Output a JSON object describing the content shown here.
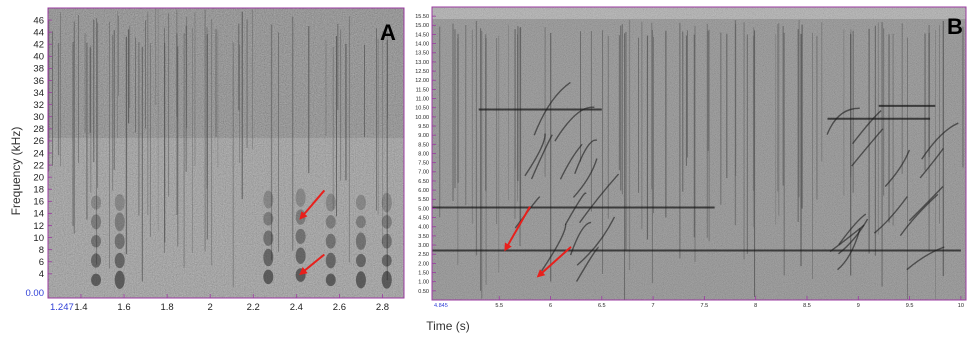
{
  "figure": {
    "y_axis_label": "Frequency (kHz)",
    "x_axis_label": "Time (s)"
  },
  "chart_data": [
    {
      "type": "heatmap",
      "panel_label": "A",
      "ylabel": "Frequency (kHz)",
      "xlabel": "Time (s)",
      "xlim": [
        1.247,
        2.9
      ],
      "ylim": [
        0,
        48
      ],
      "x_ticks": [
        1.4,
        1.6,
        1.8,
        2,
        2.2,
        2.4,
        2.6,
        2.8
      ],
      "x_tick_labels": [
        "1.4",
        "1.6",
        "1.8",
        "2",
        "2.2",
        "2.4",
        "2.6",
        "2.8"
      ],
      "x_start_label": "1.247",
      "y_ticks": [
        4,
        6,
        8,
        10,
        12,
        14,
        16,
        18,
        20,
        22,
        24,
        26,
        28,
        30,
        32,
        34,
        36,
        38,
        40,
        42,
        44,
        46
      ],
      "y_tick_labels": [
        "4",
        "6",
        "8",
        "10",
        "12",
        "14",
        "16",
        "18",
        "20",
        "22",
        "24",
        "26",
        "28",
        "30",
        "32",
        "34",
        "36",
        "38",
        "40",
        "42",
        "44",
        "46"
      ],
      "y_origin_label": "0.00",
      "annotations": [
        {
          "type": "arrow",
          "color": "#e8201c",
          "from": [
            2.53,
            17.8
          ],
          "to": [
            2.42,
            13.2
          ]
        },
        {
          "type": "arrow",
          "color": "#e8201c",
          "from": [
            2.53,
            7.2
          ],
          "to": [
            2.42,
            4.0
          ]
        }
      ]
    },
    {
      "type": "heatmap",
      "panel_label": "B",
      "ylabel": "Frequency (kHz)",
      "xlabel": "Time (s)",
      "xlim": [
        4.845,
        10.05
      ],
      "ylim": [
        0,
        16
      ],
      "x_ticks": [
        5.5,
        6,
        6.5,
        7,
        7.5,
        8,
        8.5,
        9,
        9.5,
        10
      ],
      "x_tick_labels": [
        "5.5",
        "6",
        "6.5",
        "7",
        "7.5",
        "8",
        "8.5",
        "9",
        "9.5",
        "10"
      ],
      "x_start_label": "4.845",
      "y_ticks": [
        0.5,
        1.0,
        1.5,
        2.0,
        2.5,
        3.0,
        3.5,
        4.0,
        4.5,
        5.0,
        5.5,
        6.0,
        6.5,
        7.0,
        7.5,
        8.0,
        8.5,
        9.0,
        9.5,
        10.0,
        10.5,
        11.0,
        11.5,
        12.0,
        12.5,
        13.0,
        13.5,
        14.0,
        14.5,
        15.0,
        15.5
      ],
      "y_tick_labels": [
        "0.50",
        "1.00",
        "1.50",
        "2.00",
        "2.50",
        "3.00",
        "3.50",
        "4.00",
        "4.50",
        "5.00",
        "5.50",
        "6.00",
        "6.50",
        "7.00",
        "7.50",
        "8.00",
        "8.50",
        "9.00",
        "9.50",
        "10.00",
        "10.50",
        "11.00",
        "11.50",
        "12.00",
        "12.50",
        "13.00",
        "13.50",
        "14.00",
        "14.50",
        "15.00",
        "15.50"
      ],
      "annotations": [
        {
          "type": "arrow",
          "color": "#e8201c",
          "from": [
            5.8,
            5.1
          ],
          "to": [
            5.56,
            2.75
          ]
        },
        {
          "type": "arrow",
          "color": "#e8201c",
          "from": [
            6.2,
            2.9
          ],
          "to": [
            5.88,
            1.3
          ]
        }
      ]
    }
  ]
}
